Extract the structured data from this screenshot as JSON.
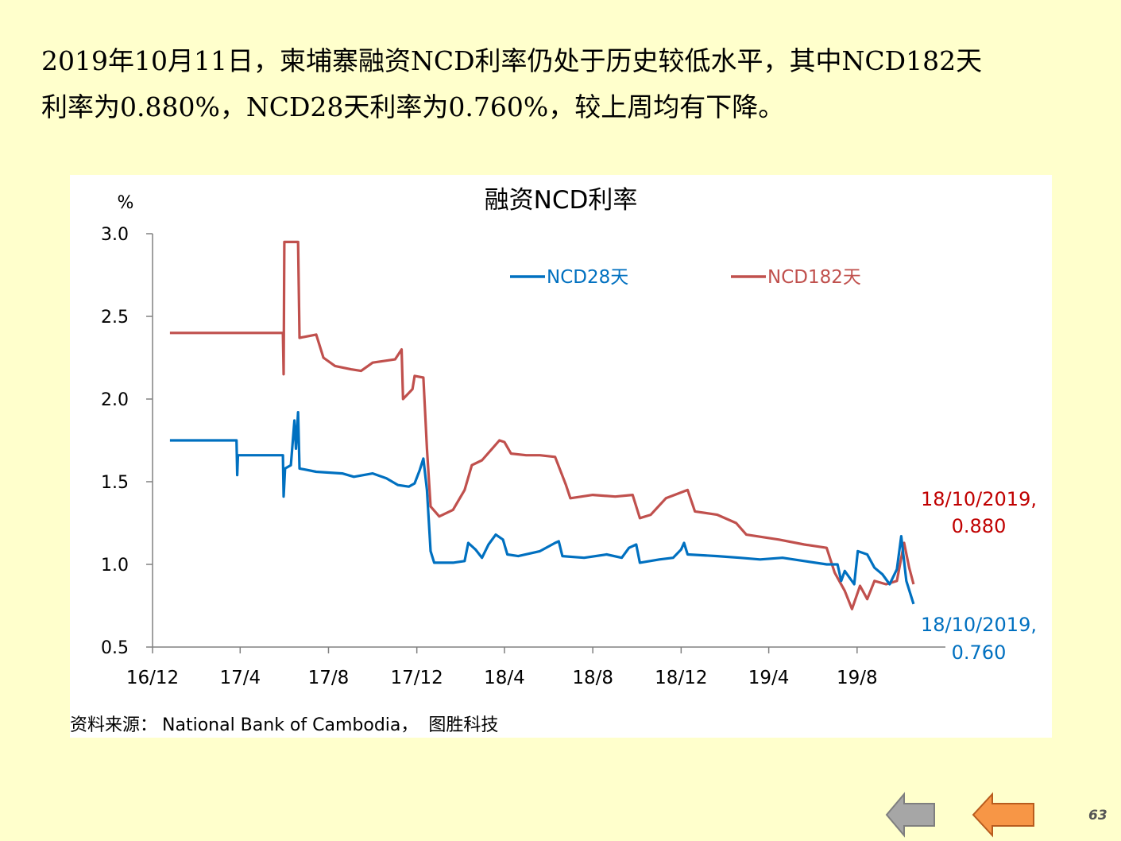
{
  "slide": {
    "intro_line1": "2019年10月11日，柬埔寨融资NCD利率仍处于历史较低水平，其中NCD182天",
    "intro_line2": "利率为0.880%，NCD28天利率为0.760%，较上周均有下降。",
    "page_number": "63"
  },
  "colors": {
    "background": "#FFFFCC",
    "ncd28": "#0070C0",
    "ncd182": "#C0504D",
    "annotation_182": "#C00000",
    "annotation_28": "#0070C0",
    "nav_prev": "#A6A6A6",
    "nav_next": "#F79646"
  },
  "nav": {
    "prev_icon": "left-arrow-icon",
    "next_icon": "left-arrow-icon"
  },
  "source": {
    "label": "资料来源：",
    "text": "National Bank of Cambodia，",
    "extra": "图胜科技"
  },
  "chart_data": {
    "type": "line",
    "title": "融资NCD利率",
    "ylabel": "%",
    "ylim": [
      0.5,
      3.0
    ],
    "yticks": [
      "3.0",
      "2.5",
      "2.0",
      "1.5",
      "1.0",
      "0.5"
    ],
    "xlim": [
      "2016-12-01",
      "2019-12-01"
    ],
    "xticks": [
      {
        "date": "2016-12-01",
        "label": "16/12"
      },
      {
        "date": "2017-04-01",
        "label": "17/4"
      },
      {
        "date": "2017-08-01",
        "label": "17/8"
      },
      {
        "date": "2017-12-01",
        "label": "17/12"
      },
      {
        "date": "2018-04-01",
        "label": "18/4"
      },
      {
        "date": "2018-08-01",
        "label": "18/8"
      },
      {
        "date": "2018-12-01",
        "label": "18/12"
      },
      {
        "date": "2019-04-01",
        "label": "19/4"
      },
      {
        "date": "2019-08-01",
        "label": "19/8"
      }
    ],
    "legend_position": "top",
    "series": [
      {
        "name": "NCD28天",
        "points": [
          [
            "2016-12-25",
            1.75
          ],
          [
            "2017-03-27",
            1.75
          ],
          [
            "2017-03-28",
            1.54
          ],
          [
            "2017-03-29",
            1.66
          ],
          [
            "2017-05-30",
            1.66
          ],
          [
            "2017-05-31",
            1.41
          ],
          [
            "2017-06-02",
            1.58
          ],
          [
            "2017-06-10",
            1.6
          ],
          [
            "2017-06-15",
            1.87
          ],
          [
            "2017-06-17",
            1.7
          ],
          [
            "2017-06-20",
            1.92
          ],
          [
            "2017-06-22",
            1.58
          ],
          [
            "2017-07-15",
            1.56
          ],
          [
            "2017-08-20",
            1.55
          ],
          [
            "2017-09-05",
            1.53
          ],
          [
            "2017-10-01",
            1.55
          ],
          [
            "2017-10-20",
            1.52
          ],
          [
            "2017-11-05",
            1.48
          ],
          [
            "2017-11-20",
            1.47
          ],
          [
            "2017-11-28",
            1.49
          ],
          [
            "2017-12-05",
            1.57
          ],
          [
            "2017-12-10",
            1.64
          ],
          [
            "2017-12-15",
            1.45
          ],
          [
            "2017-12-20",
            1.08
          ],
          [
            "2017-12-25",
            1.01
          ],
          [
            "2018-01-20",
            1.01
          ],
          [
            "2018-02-05",
            1.02
          ],
          [
            "2018-02-10",
            1.13
          ],
          [
            "2018-02-20",
            1.09
          ],
          [
            "2018-03-01",
            1.04
          ],
          [
            "2018-03-10",
            1.12
          ],
          [
            "2018-03-20",
            1.18
          ],
          [
            "2018-03-30",
            1.15
          ],
          [
            "2018-04-05",
            1.06
          ],
          [
            "2018-04-20",
            1.05
          ],
          [
            "2018-05-20",
            1.08
          ],
          [
            "2018-06-10",
            1.13
          ],
          [
            "2018-06-15",
            1.14
          ],
          [
            "2018-06-20",
            1.05
          ],
          [
            "2018-07-20",
            1.04
          ],
          [
            "2018-08-20",
            1.06
          ],
          [
            "2018-09-10",
            1.04
          ],
          [
            "2018-09-20",
            1.1
          ],
          [
            "2018-09-30",
            1.12
          ],
          [
            "2018-10-05",
            1.01
          ],
          [
            "2018-11-01",
            1.03
          ],
          [
            "2018-11-20",
            1.04
          ],
          [
            "2018-12-01",
            1.09
          ],
          [
            "2018-12-05",
            1.13
          ],
          [
            "2018-12-10",
            1.06
          ],
          [
            "2019-01-20",
            1.05
          ],
          [
            "2019-02-20",
            1.04
          ],
          [
            "2019-03-20",
            1.03
          ],
          [
            "2019-04-20",
            1.04
          ],
          [
            "2019-05-20",
            1.02
          ],
          [
            "2019-06-20",
            1.0
          ],
          [
            "2019-07-05",
            1.0
          ],
          [
            "2019-07-10",
            0.9
          ],
          [
            "2019-07-15",
            0.96
          ],
          [
            "2019-07-28",
            0.88
          ],
          [
            "2019-08-02",
            1.08
          ],
          [
            "2019-08-15",
            1.06
          ],
          [
            "2019-08-25",
            0.98
          ],
          [
            "2019-09-05",
            0.94
          ],
          [
            "2019-09-15",
            0.88
          ],
          [
            "2019-09-25",
            0.97
          ],
          [
            "2019-10-01",
            1.17
          ],
          [
            "2019-10-08",
            0.9
          ],
          [
            "2019-10-18",
            0.76
          ]
        ]
      },
      {
        "name": "NCD182天",
        "points": [
          [
            "2016-12-25",
            2.4
          ],
          [
            "2017-05-30",
            2.4
          ],
          [
            "2017-05-31",
            2.15
          ],
          [
            "2017-06-01",
            2.95
          ],
          [
            "2017-06-20",
            2.95
          ],
          [
            "2017-06-22",
            2.37
          ],
          [
            "2017-07-15",
            2.39
          ],
          [
            "2017-07-25",
            2.25
          ],
          [
            "2017-08-10",
            2.2
          ],
          [
            "2017-09-01",
            2.18
          ],
          [
            "2017-09-15",
            2.17
          ],
          [
            "2017-10-01",
            2.22
          ],
          [
            "2017-11-01",
            2.24
          ],
          [
            "2017-11-10",
            2.3
          ],
          [
            "2017-11-12",
            2.0
          ],
          [
            "2017-11-25",
            2.06
          ],
          [
            "2017-11-28",
            2.14
          ],
          [
            "2017-12-10",
            2.13
          ],
          [
            "2017-12-15",
            1.7
          ],
          [
            "2017-12-20",
            1.35
          ],
          [
            "2018-01-01",
            1.29
          ],
          [
            "2018-01-20",
            1.33
          ],
          [
            "2018-02-05",
            1.45
          ],
          [
            "2018-02-15",
            1.6
          ],
          [
            "2018-03-01",
            1.63
          ],
          [
            "2018-03-15",
            1.7
          ],
          [
            "2018-03-25",
            1.75
          ],
          [
            "2018-04-01",
            1.74
          ],
          [
            "2018-04-10",
            1.67
          ],
          [
            "2018-05-01",
            1.66
          ],
          [
            "2018-05-20",
            1.66
          ],
          [
            "2018-06-10",
            1.65
          ],
          [
            "2018-06-25",
            1.48
          ],
          [
            "2018-07-01",
            1.4
          ],
          [
            "2018-08-01",
            1.42
          ],
          [
            "2018-09-01",
            1.41
          ],
          [
            "2018-09-25",
            1.42
          ],
          [
            "2018-10-05",
            1.28
          ],
          [
            "2018-10-20",
            1.3
          ],
          [
            "2018-11-10",
            1.4
          ],
          [
            "2018-12-10",
            1.45
          ],
          [
            "2018-12-20",
            1.32
          ],
          [
            "2019-01-20",
            1.3
          ],
          [
            "2019-02-15",
            1.25
          ],
          [
            "2019-03-01",
            1.18
          ],
          [
            "2019-04-15",
            1.15
          ],
          [
            "2019-05-20",
            1.12
          ],
          [
            "2019-06-20",
            1.1
          ],
          [
            "2019-07-01",
            0.95
          ],
          [
            "2019-07-15",
            0.84
          ],
          [
            "2019-07-25",
            0.73
          ],
          [
            "2019-08-05",
            0.87
          ],
          [
            "2019-08-15",
            0.79
          ],
          [
            "2019-08-25",
            0.9
          ],
          [
            "2019-09-10",
            0.88
          ],
          [
            "2019-09-25",
            0.9
          ],
          [
            "2019-10-05",
            1.13
          ],
          [
            "2019-10-12",
            0.98
          ],
          [
            "2019-10-18",
            0.88
          ]
        ]
      }
    ],
    "annotations": [
      {
        "series": "NCD182天",
        "line1": "18/10/2019,",
        "line2": "0.880"
      },
      {
        "series": "NCD28天",
        "line1": "18/10/2019,",
        "line2": "0.760"
      }
    ]
  }
}
